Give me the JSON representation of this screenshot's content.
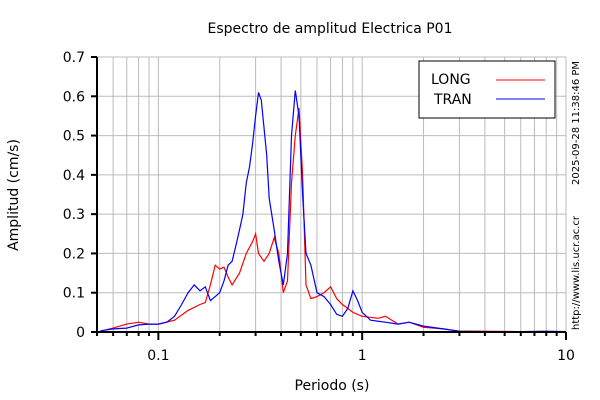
{
  "chart_data": {
    "type": "line",
    "title": "Espectro de amplitud Electrica P01",
    "xlabel": "Periodo (s)",
    "ylabel": "Amplitud (cm/s)",
    "xscale": "log",
    "xlim": [
      0.05,
      10
    ],
    "ylim": [
      0,
      0.7
    ],
    "grid": true,
    "legend_position": "top-right",
    "x_ticks": [
      {
        "v": 0.1,
        "label": "0.1"
      },
      {
        "v": 1,
        "label": "1"
      },
      {
        "v": 10,
        "label": "10"
      }
    ],
    "y_ticks": [
      {
        "v": 0,
        "label": "0"
      },
      {
        "v": 0.1,
        "label": "0.1"
      },
      {
        "v": 0.2,
        "label": "0.2"
      },
      {
        "v": 0.3,
        "label": "0.3"
      },
      {
        "v": 0.4,
        "label": "0.4"
      },
      {
        "v": 0.5,
        "label": "0.5"
      },
      {
        "v": 0.6,
        "label": "0.6"
      },
      {
        "v": 0.7,
        "label": "0.7"
      }
    ],
    "series": [
      {
        "name": "LONG",
        "color": "#ff0000",
        "points": [
          [
            0.052,
            0.002
          ],
          [
            0.06,
            0.01
          ],
          [
            0.07,
            0.02
          ],
          [
            0.08,
            0.025
          ],
          [
            0.09,
            0.02
          ],
          [
            0.1,
            0.02
          ],
          [
            0.12,
            0.03
          ],
          [
            0.14,
            0.055
          ],
          [
            0.16,
            0.07
          ],
          [
            0.17,
            0.075
          ],
          [
            0.18,
            0.12
          ],
          [
            0.19,
            0.17
          ],
          [
            0.2,
            0.16
          ],
          [
            0.21,
            0.165
          ],
          [
            0.22,
            0.14
          ],
          [
            0.23,
            0.12
          ],
          [
            0.25,
            0.15
          ],
          [
            0.27,
            0.2
          ],
          [
            0.29,
            0.23
          ],
          [
            0.3,
            0.25
          ],
          [
            0.31,
            0.2
          ],
          [
            0.33,
            0.18
          ],
          [
            0.35,
            0.2
          ],
          [
            0.37,
            0.24
          ],
          [
            0.39,
            0.2
          ],
          [
            0.41,
            0.1
          ],
          [
            0.43,
            0.13
          ],
          [
            0.45,
            0.38
          ],
          [
            0.47,
            0.5
          ],
          [
            0.49,
            0.57
          ],
          [
            0.51,
            0.4
          ],
          [
            0.53,
            0.12
          ],
          [
            0.56,
            0.085
          ],
          [
            0.6,
            0.09
          ],
          [
            0.65,
            0.1
          ],
          [
            0.7,
            0.115
          ],
          [
            0.75,
            0.085
          ],
          [
            0.8,
            0.07
          ],
          [
            0.85,
            0.06
          ],
          [
            0.9,
            0.05
          ],
          [
            1.0,
            0.04
          ],
          [
            1.2,
            0.035
          ],
          [
            1.3,
            0.04
          ],
          [
            1.5,
            0.02
          ],
          [
            1.7,
            0.025
          ],
          [
            2.0,
            0.012
          ],
          [
            2.5,
            0.008
          ],
          [
            3,
            0.002
          ],
          [
            4,
            0.002
          ],
          [
            6,
            0.001
          ],
          [
            10,
            0
          ]
        ]
      },
      {
        "name": "TRAN",
        "color": "#0000ff",
        "points": [
          [
            0.052,
            0.003
          ],
          [
            0.06,
            0.008
          ],
          [
            0.07,
            0.01
          ],
          [
            0.08,
            0.018
          ],
          [
            0.09,
            0.02
          ],
          [
            0.1,
            0.02
          ],
          [
            0.11,
            0.025
          ],
          [
            0.12,
            0.04
          ],
          [
            0.13,
            0.07
          ],
          [
            0.14,
            0.1
          ],
          [
            0.15,
            0.12
          ],
          [
            0.16,
            0.105
          ],
          [
            0.17,
            0.115
          ],
          [
            0.18,
            0.08
          ],
          [
            0.19,
            0.09
          ],
          [
            0.2,
            0.1
          ],
          [
            0.21,
            0.13
          ],
          [
            0.22,
            0.17
          ],
          [
            0.23,
            0.18
          ],
          [
            0.24,
            0.22
          ],
          [
            0.25,
            0.26
          ],
          [
            0.26,
            0.3
          ],
          [
            0.27,
            0.38
          ],
          [
            0.28,
            0.42
          ],
          [
            0.29,
            0.48
          ],
          [
            0.3,
            0.55
          ],
          [
            0.31,
            0.61
          ],
          [
            0.32,
            0.59
          ],
          [
            0.33,
            0.52
          ],
          [
            0.34,
            0.45
          ],
          [
            0.35,
            0.34
          ],
          [
            0.37,
            0.26
          ],
          [
            0.39,
            0.18
          ],
          [
            0.41,
            0.12
          ],
          [
            0.43,
            0.2
          ],
          [
            0.45,
            0.5
          ],
          [
            0.47,
            0.615
          ],
          [
            0.49,
            0.55
          ],
          [
            0.51,
            0.35
          ],
          [
            0.53,
            0.2
          ],
          [
            0.56,
            0.17
          ],
          [
            0.6,
            0.1
          ],
          [
            0.65,
            0.09
          ],
          [
            0.7,
            0.07
          ],
          [
            0.75,
            0.045
          ],
          [
            0.8,
            0.04
          ],
          [
            0.85,
            0.06
          ],
          [
            0.9,
            0.105
          ],
          [
            0.95,
            0.08
          ],
          [
            1.0,
            0.05
          ],
          [
            1.1,
            0.03
          ],
          [
            1.3,
            0.025
          ],
          [
            1.5,
            0.02
          ],
          [
            1.7,
            0.025
          ],
          [
            2.0,
            0.015
          ],
          [
            2.5,
            0.008
          ],
          [
            3,
            0.002
          ],
          [
            4,
            0.001
          ],
          [
            6,
            0.001
          ],
          [
            8,
            0.002
          ],
          [
            10,
            0.001
          ]
        ]
      }
    ],
    "annotations": {
      "timestamp": "2025-09-28 11:38:46 PM",
      "url": "http://www.lis.ucr.ac.cr"
    }
  }
}
